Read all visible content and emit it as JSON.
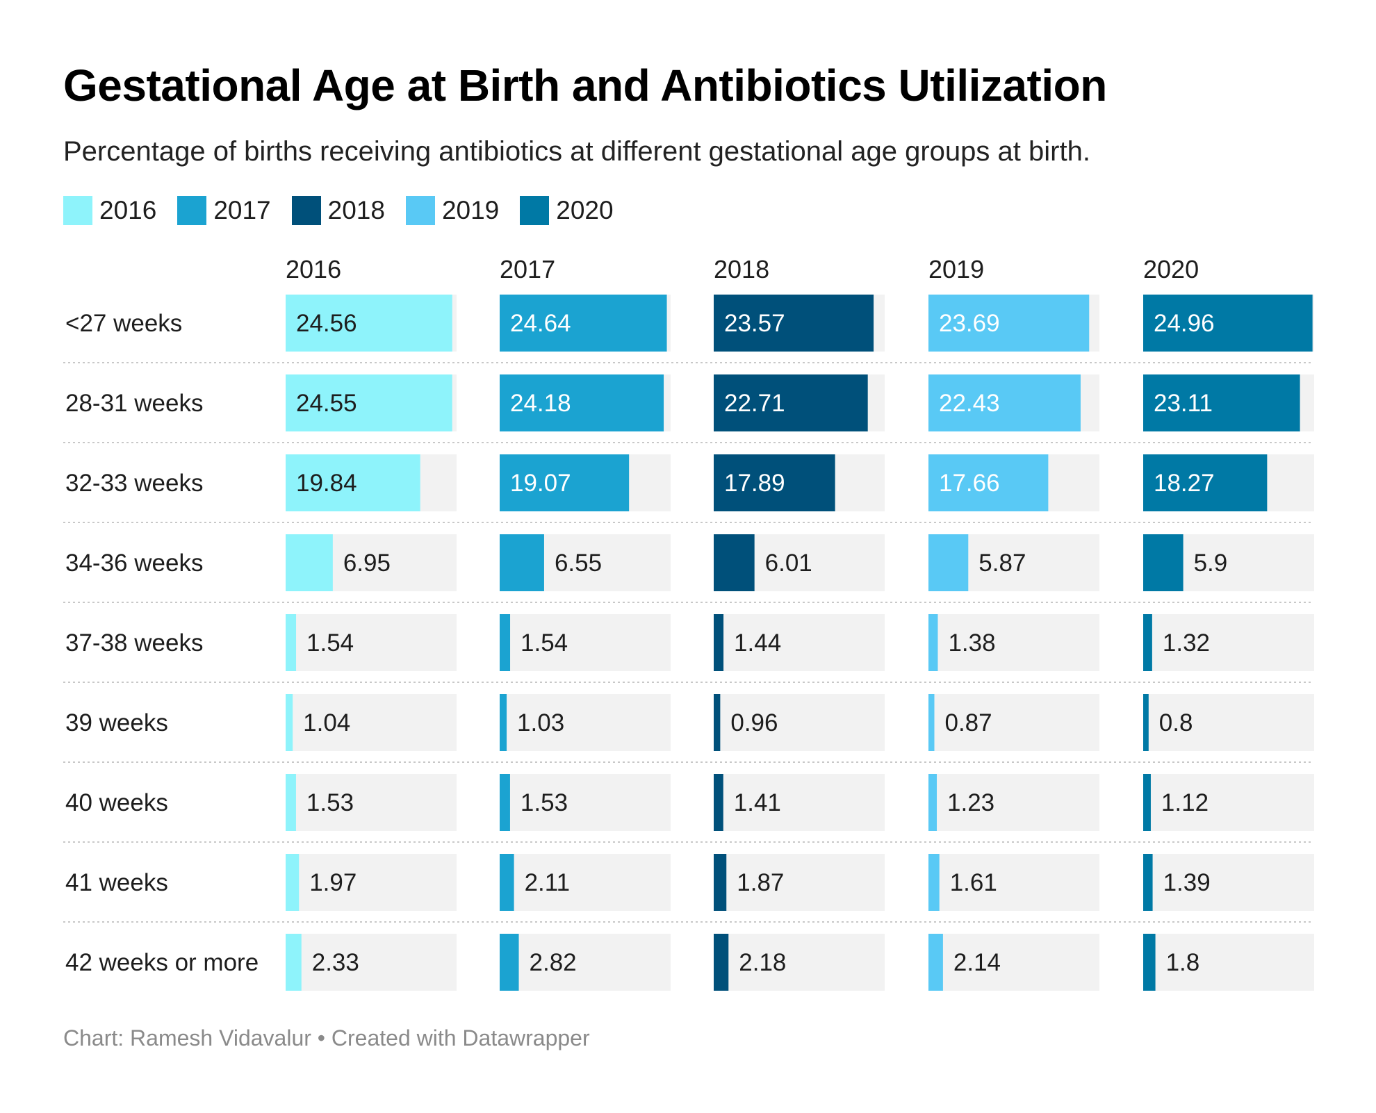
{
  "title": "Gestational Age at Birth and Antibiotics Utilization",
  "subtitle": "Percentage of births receiving antibiotics at different gestational age groups at birth.",
  "source": "Chart: Ramesh Vidavalur • Created with Datawrapper",
  "colors": {
    "2016": "#8ef3fb",
    "2017": "#1ba3d1",
    "2018": "#00507a",
    "2019": "#59c9f5",
    "2020": "#0079a5",
    "track": "#f2f2f2",
    "label_dark_bg": "#ffffff",
    "label_light_bg": "#1d1d1d",
    "divider": "#c8c8c8"
  },
  "chart_data": {
    "type": "bar",
    "title": "Gestational Age at Birth and Antibiotics Utilization",
    "subtitle": "Percentage of births receiving antibiotics at different gestational age groups at birth.",
    "categories": [
      "<27 weeks",
      "28-31 weeks",
      "32-33 weeks",
      "34-36 weeks",
      "37-38 weeks",
      "39 weeks",
      "40 weeks",
      "41 weeks",
      "42 weeks or more"
    ],
    "series": [
      {
        "name": "2016",
        "values": [
          24.56,
          24.55,
          19.84,
          6.95,
          1.54,
          1.04,
          1.53,
          1.97,
          2.33
        ]
      },
      {
        "name": "2017",
        "values": [
          24.64,
          24.18,
          19.07,
          6.55,
          1.54,
          1.03,
          1.53,
          2.11,
          2.82
        ]
      },
      {
        "name": "2018",
        "values": [
          23.57,
          22.71,
          17.89,
          6.01,
          1.44,
          0.96,
          1.41,
          1.87,
          2.18
        ]
      },
      {
        "name": "2019",
        "values": [
          23.69,
          22.43,
          17.66,
          5.87,
          1.38,
          0.87,
          1.23,
          1.61,
          2.14
        ]
      },
      {
        "name": "2020",
        "values": [
          24.96,
          23.11,
          18.27,
          5.9,
          1.32,
          0.8,
          1.12,
          1.39,
          1.8
        ]
      }
    ],
    "xlim": [
      0,
      25.2
    ],
    "legend_position": "top-left",
    "grid": false
  }
}
